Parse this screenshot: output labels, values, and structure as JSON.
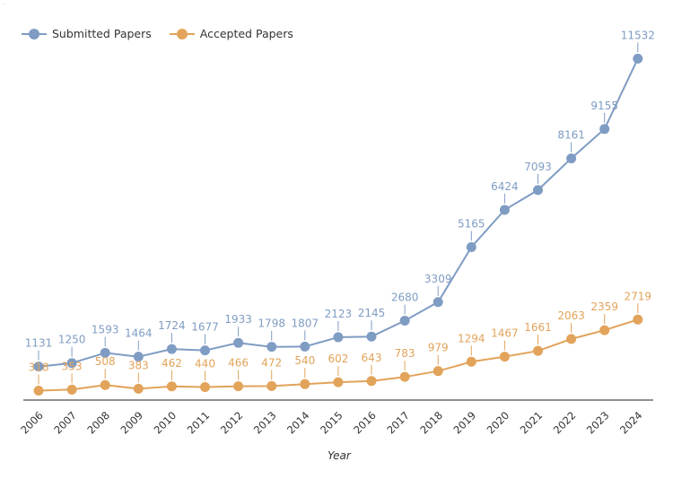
{
  "chart_data": {
    "type": "line",
    "xlabel": "Year",
    "ylabel": "",
    "categories": [
      "2006",
      "2007",
      "2008",
      "2009",
      "2010",
      "2011",
      "2012",
      "2013",
      "2014",
      "2015",
      "2016",
      "2017",
      "2018",
      "2019",
      "2020",
      "2021",
      "2022",
      "2023",
      "2024"
    ],
    "series": [
      {
        "name": "Submitted Papers",
        "color": "#7f9cc3",
        "values": [
          1131,
          1250,
          1593,
          1464,
          1724,
          1677,
          1933,
          1798,
          1807,
          2123,
          2145,
          2680,
          3309,
          5165,
          6424,
          7093,
          8161,
          9155,
          11532
        ]
      },
      {
        "name": "Accepted Papers",
        "color": "#e2a35a",
        "values": [
          318,
          353,
          508,
          383,
          462,
          440,
          466,
          472,
          540,
          602,
          643,
          783,
          979,
          1294,
          1467,
          1661,
          2063,
          2359,
          2719
        ]
      }
    ],
    "ylim": [
      0,
      12300
    ],
    "grid": false,
    "legend_position": "top-left"
  }
}
